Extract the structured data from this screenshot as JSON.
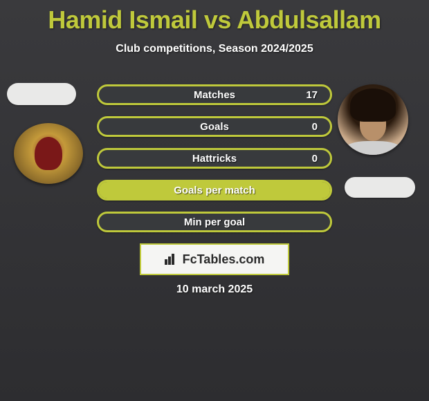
{
  "title": "Hamid Ismail vs Abdulsallam",
  "subtitle": "Club competitions, Season 2024/2025",
  "date": "10 march 2025",
  "branding": "FcTables.com",
  "colors": {
    "accent": "#bfc93b",
    "background_top": "#3a3a3d",
    "background_bottom": "#2d2d30",
    "text": "#ffffff",
    "brand_bg": "#f5f5f3",
    "brand_text": "#2a2a2a"
  },
  "stats": [
    {
      "label": "Matches",
      "value": "17",
      "fill_pct": 0
    },
    {
      "label": "Goals",
      "value": "0",
      "fill_pct": 0
    },
    {
      "label": "Hattricks",
      "value": "0",
      "fill_pct": 0
    },
    {
      "label": "Goals per match",
      "value": "",
      "fill_pct": 100
    },
    {
      "label": "Min per goal",
      "value": "",
      "fill_pct": 0
    }
  ],
  "avatars": {
    "left_logo_icon": "club-badge-icon",
    "right_player_icon": "player-photo-icon"
  }
}
